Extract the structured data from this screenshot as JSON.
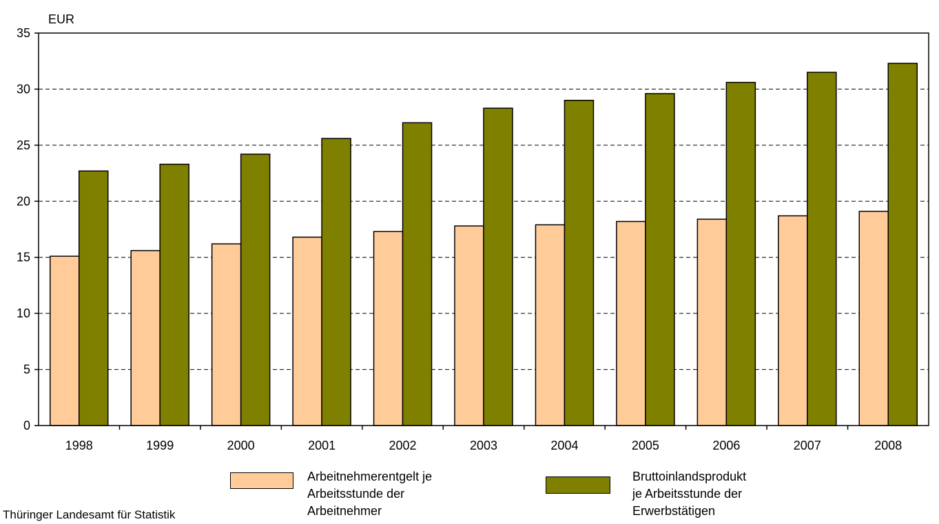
{
  "chart_data": {
    "type": "bar",
    "ylabel": "EUR",
    "ylim": [
      0,
      35
    ],
    "yticks": [
      0,
      5,
      10,
      15,
      20,
      25,
      30,
      35
    ],
    "grid": "horizontal dashed",
    "legend_placement": "bottom",
    "categories": [
      "1998",
      "1999",
      "2000",
      "2001",
      "2002",
      "2003",
      "2004",
      "2005",
      "2006",
      "2007",
      "2008"
    ],
    "series": [
      {
        "name": "Arbeitnehmerentgelt je\nArbeitsstunde der\nArbeitnehmer",
        "color": "#FFCC99",
        "values": [
          15.1,
          15.6,
          16.2,
          16.8,
          17.3,
          17.8,
          17.9,
          18.2,
          18.4,
          18.7,
          19.1
        ]
      },
      {
        "name": "Bruttoinlandsprodukt\nje Arbeitsstunde der\nErwerbstätigen",
        "color": "#808000",
        "values": [
          22.7,
          23.3,
          24.2,
          25.6,
          27.0,
          28.3,
          29.0,
          29.6,
          30.6,
          31.5,
          32.3
        ]
      }
    ]
  },
  "source": "Thüringer Landesamt für Statistik"
}
